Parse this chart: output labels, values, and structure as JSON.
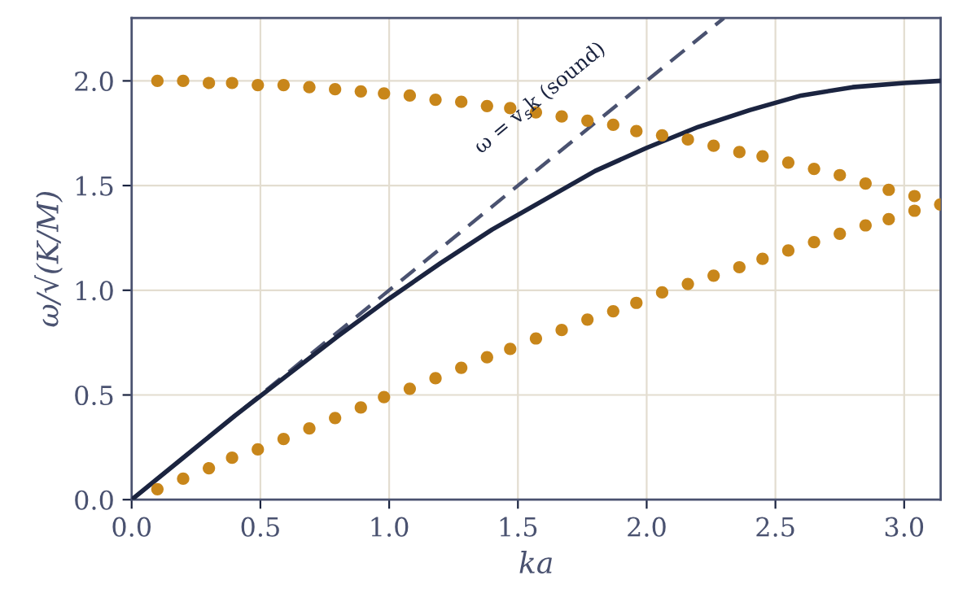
{
  "chart_data": {
    "type": "line",
    "xlabel": "ka",
    "ylabel": "ω/√(K/M)",
    "xlim": [
      0,
      3.1416
    ],
    "ylim": [
      0,
      2.3
    ],
    "xticks": [
      {
        "value": 0,
        "label": "0.0"
      },
      {
        "value": 0.5,
        "label": "0.5"
      },
      {
        "value": 1,
        "label": "1.0"
      },
      {
        "value": 1.5,
        "label": "1.5"
      },
      {
        "value": 2,
        "label": "2.0"
      },
      {
        "value": 2.5,
        "label": "2.5"
      },
      {
        "value": 3,
        "label": "3.0"
      }
    ],
    "yticks": [
      {
        "value": 0,
        "label": "0.0"
      },
      {
        "value": 0.5,
        "label": "0.5"
      },
      {
        "value": 1,
        "label": "1.0"
      },
      {
        "value": 1.5,
        "label": "1.5"
      },
      {
        "value": 2,
        "label": "2.0"
      }
    ],
    "grid": true,
    "legend": false,
    "annotations": [
      "ω = v$_{s}$k (sound)"
    ],
    "series": [
      {
        "color": "#4a5270",
        "line_style": "dashed",
        "x": [
          0,
          2.3
        ],
        "values": [
          0,
          2.3
        ]
      },
      {
        "color": "#1b2440",
        "line_style": "solid",
        "x": [
          0,
          0.2,
          0.4,
          0.6,
          0.8,
          1.0,
          1.2,
          1.4,
          1.6,
          1.8,
          2.0,
          2.2,
          2.4,
          2.6,
          2.8,
          3.0,
          3.1416
        ],
        "values": [
          0,
          0.2,
          0.4,
          0.59,
          0.78,
          0.96,
          1.13,
          1.29,
          1.43,
          1.57,
          1.68,
          1.78,
          1.86,
          1.93,
          1.97,
          1.99,
          2.0
        ]
      },
      {
        "type": "scatter",
        "color": "#c8861a",
        "marker": "circle",
        "x": [
          0.1,
          0.2,
          0.3,
          0.39,
          0.49,
          0.59,
          0.69,
          0.79,
          0.89,
          0.98,
          1.08,
          1.18,
          1.28,
          1.38,
          1.47,
          1.57,
          1.67,
          1.77,
          1.87,
          1.96,
          2.06,
          2.16,
          2.26,
          2.36,
          2.45,
          2.55,
          2.65,
          2.75,
          2.85,
          2.94,
          3.04,
          3.14
        ],
        "values": [
          2.0,
          2.0,
          1.99,
          1.99,
          1.98,
          1.98,
          1.97,
          1.96,
          1.95,
          1.94,
          1.93,
          1.91,
          1.9,
          1.88,
          1.87,
          1.85,
          1.83,
          1.81,
          1.79,
          1.76,
          1.74,
          1.72,
          1.69,
          1.66,
          1.64,
          1.61,
          1.58,
          1.55,
          1.51,
          1.48,
          1.45,
          1.41
        ]
      },
      {
        "type": "scatter",
        "color": "#c8861a",
        "marker": "circle",
        "x": [
          0.1,
          0.2,
          0.3,
          0.39,
          0.49,
          0.59,
          0.69,
          0.79,
          0.89,
          0.98,
          1.08,
          1.18,
          1.28,
          1.38,
          1.47,
          1.57,
          1.67,
          1.77,
          1.87,
          1.96,
          2.06,
          2.16,
          2.26,
          2.36,
          2.45,
          2.55,
          2.65,
          2.75,
          2.85,
          2.94,
          3.04
        ],
        "values": [
          0.05,
          0.1,
          0.15,
          0.2,
          0.24,
          0.29,
          0.34,
          0.39,
          0.44,
          0.49,
          0.53,
          0.58,
          0.63,
          0.68,
          0.72,
          0.77,
          0.81,
          0.86,
          0.9,
          0.94,
          0.99,
          1.03,
          1.07,
          1.11,
          1.15,
          1.19,
          1.23,
          1.27,
          1.31,
          1.34,
          1.38
        ]
      }
    ]
  }
}
